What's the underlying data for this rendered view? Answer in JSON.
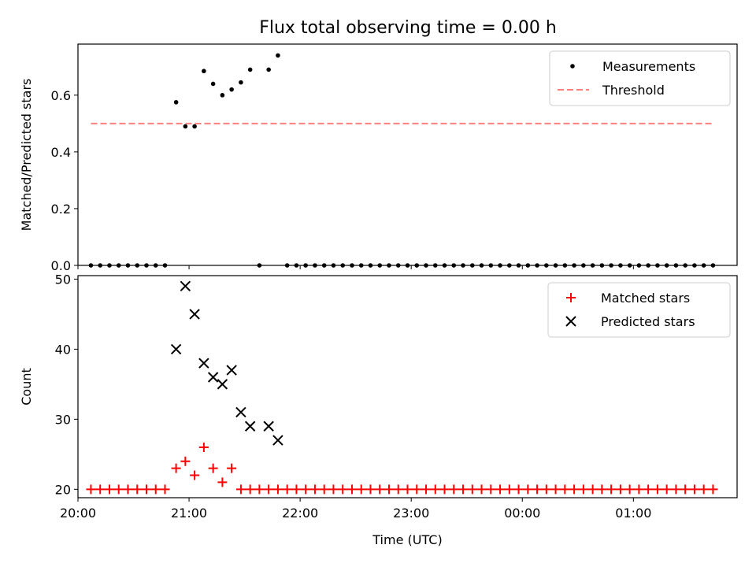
{
  "figure": {
    "title": "Flux total observing time = 0.00 h"
  },
  "chart_data": [
    {
      "type": "scatter",
      "panel": "top",
      "title": "Flux total observing time = 0.00 h",
      "xlabel": "",
      "ylabel": "Matched/Predicted stars",
      "x_axis": {
        "type": "time",
        "range": [
          "20:00",
          "01:56"
        ],
        "ticks": [
          "20:00",
          "21:00",
          "22:00",
          "23:00",
          "00:00",
          "01:00"
        ],
        "tick_labels_shown": false
      },
      "y_axis": {
        "range": [
          0,
          0.78
        ],
        "ticks": [
          0.0,
          0.2,
          0.4,
          0.6
        ],
        "tick_labels": [
          "0.0",
          "0.2",
          "0.4",
          "0.6"
        ]
      },
      "grid": false,
      "legend": {
        "position": "top-right",
        "entries": [
          "Measurements",
          "Threshold"
        ]
      },
      "series": [
        {
          "name": "Measurements",
          "style": "dot",
          "color": "#000000",
          "points": [
            [
              "20:07",
              0.0
            ],
            [
              "20:12",
              0.0
            ],
            [
              "20:17",
              0.0
            ],
            [
              "20:22",
              0.0
            ],
            [
              "20:27",
              0.0
            ],
            [
              "20:32",
              0.0
            ],
            [
              "20:37",
              0.0
            ],
            [
              "20:42",
              0.0
            ],
            [
              "20:47",
              0.0
            ],
            [
              "20:53",
              0.575
            ],
            [
              "20:58",
              0.49
            ],
            [
              "21:03",
              0.49
            ],
            [
              "21:08",
              0.685
            ],
            [
              "21:13",
              0.64
            ],
            [
              "21:18",
              0.6
            ],
            [
              "21:23",
              0.62
            ],
            [
              "21:28",
              0.645
            ],
            [
              "21:33",
              0.69
            ],
            [
              "21:38",
              0.0
            ],
            [
              "21:43",
              0.69
            ],
            [
              "21:48",
              0.74
            ],
            [
              "21:53",
              0.0
            ],
            [
              "21:58",
              0.0
            ],
            [
              "22:03",
              0.0
            ],
            [
              "22:08",
              0.0
            ],
            [
              "22:13",
              0.0
            ],
            [
              "22:18",
              0.0
            ],
            [
              "22:23",
              0.0
            ],
            [
              "22:28",
              0.0
            ],
            [
              "22:33",
              0.0
            ],
            [
              "22:38",
              0.0
            ],
            [
              "22:43",
              0.0
            ],
            [
              "22:48",
              0.0
            ],
            [
              "22:53",
              0.0
            ],
            [
              "22:58",
              0.0
            ],
            [
              "23:03",
              0.0
            ],
            [
              "23:08",
              0.0
            ],
            [
              "23:13",
              0.0
            ],
            [
              "23:18",
              0.0
            ],
            [
              "23:23",
              0.0
            ],
            [
              "23:28",
              0.0
            ],
            [
              "23:33",
              0.0
            ],
            [
              "23:38",
              0.0
            ],
            [
              "23:43",
              0.0
            ],
            [
              "23:48",
              0.0
            ],
            [
              "23:53",
              0.0
            ],
            [
              "23:58",
              0.0
            ],
            [
              "00:03",
              0.0
            ],
            [
              "00:08",
              0.0
            ],
            [
              "00:13",
              0.0
            ],
            [
              "00:18",
              0.0
            ],
            [
              "00:23",
              0.0
            ],
            [
              "00:28",
              0.0
            ],
            [
              "00:33",
              0.0
            ],
            [
              "00:38",
              0.0
            ],
            [
              "00:43",
              0.0
            ],
            [
              "00:48",
              0.0
            ],
            [
              "00:53",
              0.0
            ],
            [
              "00:58",
              0.0
            ],
            [
              "01:03",
              0.0
            ],
            [
              "01:08",
              0.0
            ],
            [
              "01:13",
              0.0
            ],
            [
              "01:18",
              0.0
            ],
            [
              "01:23",
              0.0
            ],
            [
              "01:28",
              0.0
            ],
            [
              "01:33",
              0.0
            ],
            [
              "01:38",
              0.0
            ],
            [
              "01:43",
              0.0
            ]
          ]
        },
        {
          "name": "Threshold",
          "style": "dashed-line",
          "color": "#ff7f7f",
          "points": [
            [
              "20:07",
              0.5
            ],
            [
              "01:43",
              0.5
            ]
          ]
        }
      ]
    },
    {
      "type": "scatter",
      "panel": "bottom",
      "title": "",
      "xlabel": "Time (UTC)",
      "ylabel": "Count",
      "x_axis": {
        "type": "time",
        "range": [
          "20:00",
          "01:56"
        ],
        "ticks": [
          "20:00",
          "21:00",
          "22:00",
          "23:00",
          "00:00",
          "01:00"
        ],
        "tick_labels": [
          "20:00",
          "21:00",
          "22:00",
          "23:00",
          "00:00",
          "01:00"
        ]
      },
      "y_axis": {
        "range": [
          18.8,
          50.5
        ],
        "ticks": [
          20,
          30,
          40,
          50
        ],
        "tick_labels": [
          "20",
          "30",
          "40",
          "50"
        ]
      },
      "grid": false,
      "legend": {
        "position": "top-right",
        "entries": [
          "Matched stars",
          "Predicted stars"
        ]
      },
      "series": [
        {
          "name": "Matched stars",
          "marker": "plus",
          "color": "#ff0000",
          "points": [
            [
              "20:07",
              20
            ],
            [
              "20:12",
              20
            ],
            [
              "20:17",
              20
            ],
            [
              "20:22",
              20
            ],
            [
              "20:27",
              20
            ],
            [
              "20:32",
              20
            ],
            [
              "20:37",
              20
            ],
            [
              "20:42",
              20
            ],
            [
              "20:47",
              20
            ],
            [
              "20:53",
              23
            ],
            [
              "20:58",
              24
            ],
            [
              "21:03",
              22
            ],
            [
              "21:08",
              26
            ],
            [
              "21:13",
              23
            ],
            [
              "21:18",
              21
            ],
            [
              "21:23",
              23
            ],
            [
              "21:28",
              20
            ],
            [
              "21:33",
              20
            ],
            [
              "21:38",
              20
            ],
            [
              "21:43",
              20
            ],
            [
              "21:48",
              20
            ],
            [
              "21:53",
              20
            ],
            [
              "21:58",
              20
            ],
            [
              "22:03",
              20
            ],
            [
              "22:08",
              20
            ],
            [
              "22:13",
              20
            ],
            [
              "22:18",
              20
            ],
            [
              "22:23",
              20
            ],
            [
              "22:28",
              20
            ],
            [
              "22:33",
              20
            ],
            [
              "22:38",
              20
            ],
            [
              "22:43",
              20
            ],
            [
              "22:48",
              20
            ],
            [
              "22:53",
              20
            ],
            [
              "22:58",
              20
            ],
            [
              "23:03",
              20
            ],
            [
              "23:08",
              20
            ],
            [
              "23:13",
              20
            ],
            [
              "23:18",
              20
            ],
            [
              "23:23",
              20
            ],
            [
              "23:28",
              20
            ],
            [
              "23:33",
              20
            ],
            [
              "23:38",
              20
            ],
            [
              "23:43",
              20
            ],
            [
              "23:48",
              20
            ],
            [
              "23:53",
              20
            ],
            [
              "23:58",
              20
            ],
            [
              "00:03",
              20
            ],
            [
              "00:08",
              20
            ],
            [
              "00:13",
              20
            ],
            [
              "00:18",
              20
            ],
            [
              "00:23",
              20
            ],
            [
              "00:28",
              20
            ],
            [
              "00:33",
              20
            ],
            [
              "00:38",
              20
            ],
            [
              "00:43",
              20
            ],
            [
              "00:48",
              20
            ],
            [
              "00:53",
              20
            ],
            [
              "00:58",
              20
            ],
            [
              "01:03",
              20
            ],
            [
              "01:08",
              20
            ],
            [
              "01:13",
              20
            ],
            [
              "01:18",
              20
            ],
            [
              "01:23",
              20
            ],
            [
              "01:28",
              20
            ],
            [
              "01:33",
              20
            ],
            [
              "01:38",
              20
            ],
            [
              "01:43",
              20
            ]
          ]
        },
        {
          "name": "Predicted stars",
          "marker": "x",
          "color": "#000000",
          "points": [
            [
              "20:53",
              40
            ],
            [
              "20:58",
              49
            ],
            [
              "21:03",
              45
            ],
            [
              "21:08",
              38
            ],
            [
              "21:13",
              36
            ],
            [
              "21:18",
              35
            ],
            [
              "21:23",
              37
            ],
            [
              "21:28",
              31
            ],
            [
              "21:33",
              29
            ],
            [
              "21:43",
              29
            ],
            [
              "21:48",
              27
            ]
          ]
        }
      ]
    }
  ]
}
